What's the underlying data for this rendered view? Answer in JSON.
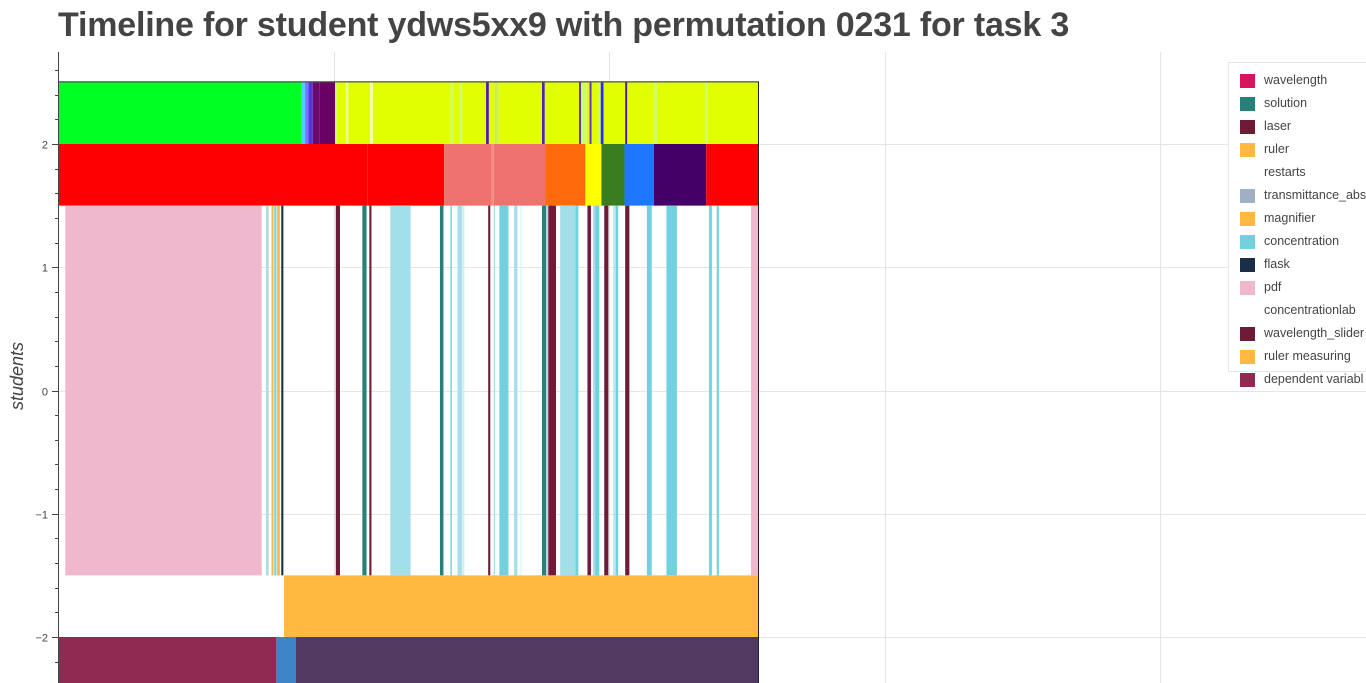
{
  "chart_data": {
    "type": "timeline",
    "title": "Timeline for student ydws5xx9 with permutation 0231 for task 3",
    "ylabel": "students",
    "y_ticks": [
      {
        "value": 2,
        "label": "2"
      },
      {
        "value": 1,
        "label": "1"
      },
      {
        "value": 0,
        "label": "0"
      },
      {
        "value": -1,
        "label": "−1"
      },
      {
        "value": -2,
        "label": "−2"
      }
    ],
    "ylim": [
      -2.36,
      2.76
    ],
    "x_range": [
      0,
      1000
    ],
    "plot_x_range": [
      0,
      481
    ],
    "grid": true,
    "legend_position": "top-right",
    "legend": [
      {
        "label": "wavelength",
        "color": "#d6155c"
      },
      {
        "label": "solution",
        "color": "#288078"
      },
      {
        "label": "laser",
        "color": "#6e1c36"
      },
      {
        "label": "ruler",
        "color": "#ffb940"
      },
      {
        "label": "restarts",
        "color": "#ffffff"
      },
      {
        "label": "transmittance_abs",
        "color": "#a0b0c4"
      },
      {
        "label": "magnifier",
        "color": "#ffb940"
      },
      {
        "label": "concentration",
        "color": "#72d1de"
      },
      {
        "label": "flask",
        "color": "#1a2e48"
      },
      {
        "label": "pdf",
        "color": "#efb8cc"
      },
      {
        "label": "concentrationlab",
        "color": "#ffffff"
      },
      {
        "label": "wavelength_slider",
        "color": "#6e1c36"
      },
      {
        "label": "ruler measuring",
        "color": "#ffb940"
      },
      {
        "label": "dependent variabl",
        "color": "#912a52"
      }
    ],
    "rows": [
      {
        "y0": 2.0,
        "y1": 2.5,
        "segments": [
          {
            "x0": 0,
            "x1": 347,
            "color": "#00ff22"
          },
          {
            "x0": 347,
            "x1": 352,
            "color": "#55ccff"
          },
          {
            "x0": 352,
            "x1": 357,
            "color": "#7777ff"
          },
          {
            "x0": 357,
            "x1": 363,
            "color": "#5533dd"
          },
          {
            "x0": 363,
            "x1": 373,
            "color": "#6a0a6a"
          },
          {
            "x0": 373,
            "x1": 395,
            "color": "#6a0066"
          },
          {
            "x0": 395,
            "x1": 398,
            "color": "#ccff66"
          },
          {
            "x0": 398,
            "x1": 410,
            "color": "#e2ff00"
          },
          {
            "x0": 410,
            "x1": 414,
            "color": "#eeff88"
          },
          {
            "x0": 414,
            "x1": 445,
            "color": "#e2ff00"
          },
          {
            "x0": 445,
            "x1": 449,
            "color": "#f2ffaa"
          },
          {
            "x0": 449,
            "x1": 560,
            "color": "#e2ff00"
          },
          {
            "x0": 560,
            "x1": 564,
            "color": "#ccff66"
          },
          {
            "x0": 564,
            "x1": 574,
            "color": "#e2ff00"
          },
          {
            "x0": 574,
            "x1": 577,
            "color": "#ccff66"
          },
          {
            "x0": 577,
            "x1": 611,
            "color": "#e2ff00"
          },
          {
            "x0": 611,
            "x1": 615,
            "color": "#5511aa"
          },
          {
            "x0": 615,
            "x1": 623,
            "color": "#e2ff00"
          },
          {
            "x0": 623,
            "x1": 629,
            "color": "#ccee55"
          },
          {
            "x0": 629,
            "x1": 691,
            "color": "#e2ff00"
          },
          {
            "x0": 691,
            "x1": 695,
            "color": "#5522aa"
          },
          {
            "x0": 695,
            "x1": 744,
            "color": "#e2ff00"
          },
          {
            "x0": 744,
            "x1": 747,
            "color": "#6633aa"
          },
          {
            "x0": 747,
            "x1": 755,
            "color": "#ccff66"
          },
          {
            "x0": 755,
            "x1": 759,
            "color": "#e2ff00"
          },
          {
            "x0": 759,
            "x1": 762,
            "color": "#6633cc"
          },
          {
            "x0": 762,
            "x1": 772,
            "color": "#e2ff00"
          },
          {
            "x0": 772,
            "x1": 775,
            "color": "#ccff66"
          },
          {
            "x0": 775,
            "x1": 779,
            "color": "#2a2aff"
          },
          {
            "x0": 779,
            "x1": 810,
            "color": "#e2ff00"
          },
          {
            "x0": 810,
            "x1": 813,
            "color": "#5511aa"
          },
          {
            "x0": 813,
            "x1": 851,
            "color": "#e2ff00"
          },
          {
            "x0": 851,
            "x1": 856,
            "color": "#ccff66"
          },
          {
            "x0": 856,
            "x1": 924,
            "color": "#e2ff00"
          },
          {
            "x0": 924,
            "x1": 928,
            "color": "#ccff66"
          },
          {
            "x0": 928,
            "x1": 1000,
            "color": "#e2ff00"
          }
        ]
      },
      {
        "y0": 1.5,
        "y1": 2.0,
        "segments": [
          {
            "x0": 0,
            "x1": 441,
            "color": "#ff0000"
          },
          {
            "x0": 441,
            "x1": 551,
            "color": "#ff0000"
          },
          {
            "x0": 551,
            "x1": 619,
            "color": "#ee726e"
          },
          {
            "x0": 619,
            "x1": 622,
            "color": "#f58a80"
          },
          {
            "x0": 622,
            "x1": 696,
            "color": "#ee726e"
          },
          {
            "x0": 696,
            "x1": 753,
            "color": "#ff6a0a"
          },
          {
            "x0": 753,
            "x1": 776,
            "color": "#ffff00"
          },
          {
            "x0": 776,
            "x1": 809,
            "color": "#3a7d21"
          },
          {
            "x0": 809,
            "x1": 851,
            "color": "#1f77ff"
          },
          {
            "x0": 851,
            "x1": 926,
            "color": "#440066"
          },
          {
            "x0": 926,
            "x1": 1000,
            "color": "#ff0000"
          }
        ]
      },
      {
        "y0": -1.5,
        "y1": 1.5,
        "segments": [
          {
            "x0": 9,
            "x1": 290,
            "color": "#efb8cc"
          },
          {
            "x0": 296,
            "x1": 300,
            "color": "#a9dfe8"
          },
          {
            "x0": 304,
            "x1": 307,
            "color": "#ffb940"
          },
          {
            "x0": 308,
            "x1": 311,
            "color": "#72d1de"
          },
          {
            "x0": 312,
            "x1": 316,
            "color": "#ffb940"
          },
          {
            "x0": 318,
            "x1": 321,
            "color": "#1a2e48"
          },
          {
            "x0": 396,
            "x1": 402,
            "color": "#6e1c36"
          },
          {
            "x0": 434,
            "x1": 440,
            "color": "#288078"
          },
          {
            "x0": 444,
            "x1": 447,
            "color": "#6e1c36"
          },
          {
            "x0": 474,
            "x1": 503,
            "color": "#a2dfe9"
          },
          {
            "x0": 545,
            "x1": 550,
            "color": "#288078"
          },
          {
            "x0": 560,
            "x1": 562,
            "color": "#72d1de"
          },
          {
            "x0": 570,
            "x1": 577,
            "color": "#a9dfe8"
          },
          {
            "x0": 578,
            "x1": 580,
            "color": "#cdeef3"
          },
          {
            "x0": 614,
            "x1": 617,
            "color": "#6e1c36"
          },
          {
            "x0": 622,
            "x1": 624,
            "color": "#a9dfe8"
          },
          {
            "x0": 630,
            "x1": 643,
            "color": "#72d1de"
          },
          {
            "x0": 651,
            "x1": 656,
            "color": "#a9dfe8"
          },
          {
            "x0": 660,
            "x1": 662,
            "color": "#e0f5f8"
          },
          {
            "x0": 691,
            "x1": 697,
            "color": "#288078"
          },
          {
            "x0": 697,
            "x1": 700,
            "color": "#a9dfe8"
          },
          {
            "x0": 700,
            "x1": 711,
            "color": "#6e1c36"
          },
          {
            "x0": 717,
            "x1": 739,
            "color": "#a2dfe9"
          },
          {
            "x0": 739,
            "x1": 743,
            "color": "#72d1de"
          },
          {
            "x0": 756,
            "x1": 761,
            "color": "#6e1c36"
          },
          {
            "x0": 764,
            "x1": 767,
            "color": "#a9dfe8"
          },
          {
            "x0": 767,
            "x1": 773,
            "color": "#72d1de"
          },
          {
            "x0": 780,
            "x1": 786,
            "color": "#6e1c36"
          },
          {
            "x0": 793,
            "x1": 795,
            "color": "#a9dfe8"
          },
          {
            "x0": 796,
            "x1": 800,
            "color": "#72d1de"
          },
          {
            "x0": 810,
            "x1": 816,
            "color": "#6e1c36"
          },
          {
            "x0": 841,
            "x1": 848,
            "color": "#72d1de"
          },
          {
            "x0": 869,
            "x1": 884,
            "color": "#72d1de"
          },
          {
            "x0": 930,
            "x1": 934,
            "color": "#72d1de"
          },
          {
            "x0": 941,
            "x1": 944,
            "color": "#72d1de"
          },
          {
            "x0": 990,
            "x1": 1000,
            "color": "#efb8cc"
          }
        ]
      },
      {
        "y0": -2.0,
        "y1": -1.5,
        "segments": [
          {
            "x0": 322,
            "x1": 1000,
            "color": "#ffb940"
          }
        ]
      },
      {
        "y0": -2.5,
        "y1": -2.0,
        "segments": [
          {
            "x0": 0,
            "x1": 311,
            "color": "#912a52"
          },
          {
            "x0": 311,
            "x1": 339,
            "color": "#3d85c6"
          },
          {
            "x0": 339,
            "x1": 1000,
            "color": "#523961"
          }
        ]
      }
    ]
  }
}
